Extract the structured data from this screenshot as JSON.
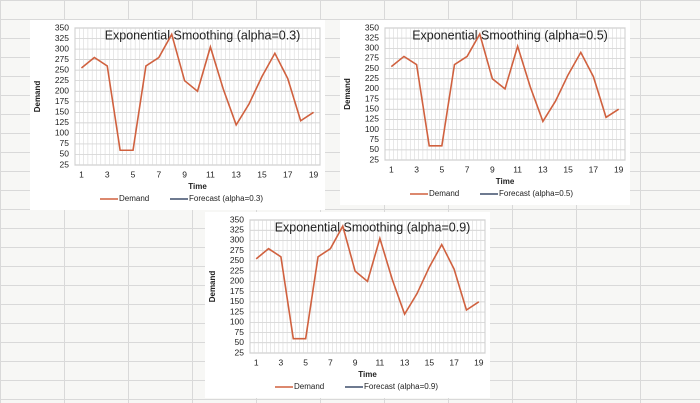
{
  "chart_data": [
    {
      "type": "line",
      "title": "Exponential Smoothing (alpha=0.3)",
      "x_label": "Time",
      "y_label": "Demand",
      "categories": [
        1,
        null,
        3,
        null,
        5,
        null,
        7,
        null,
        9,
        null,
        11,
        null,
        13,
        null,
        15,
        null,
        17,
        null,
        19
      ],
      "series": [
        {
          "name": "Demand",
          "color": "#d0613f",
          "values": [
            255,
            280,
            260,
            60,
            60,
            260,
            280,
            335,
            225,
            200,
            305,
            205,
            120,
            170,
            235,
            290,
            230,
            130,
            150
          ]
        },
        {
          "name": "Forecast (alpha=0.3)",
          "color": "#3f4f6b",
          "values": [
            null,
            null,
            null,
            null,
            null,
            null,
            null,
            null,
            null,
            null,
            null,
            null,
            null,
            null,
            null,
            null,
            null,
            null,
            null
          ]
        }
      ],
      "ylim": [
        25,
        350
      ],
      "yticks": [
        25,
        50,
        75,
        100,
        125,
        150,
        175,
        200,
        225,
        250,
        275,
        300,
        325,
        350
      ],
      "grid": true,
      "legend": "bottom"
    },
    {
      "type": "line",
      "title": "Exponential Smoothing (alpha=0.5)",
      "x_label": "Time",
      "y_label": "Demand",
      "categories": [
        1,
        null,
        3,
        null,
        5,
        null,
        7,
        null,
        9,
        null,
        11,
        null,
        13,
        null,
        15,
        null,
        17,
        null,
        19
      ],
      "series": [
        {
          "name": "Demand",
          "color": "#d0613f",
          "values": [
            255,
            280,
            260,
            60,
            60,
            260,
            280,
            335,
            225,
            200,
            305,
            205,
            120,
            170,
            235,
            290,
            230,
            130,
            150
          ]
        },
        {
          "name": "Forecast (alpha=0.5)",
          "color": "#3f4f6b",
          "values": [
            null,
            null,
            null,
            null,
            null,
            null,
            null,
            null,
            null,
            null,
            null,
            null,
            null,
            null,
            null,
            null,
            null,
            null,
            null
          ]
        }
      ],
      "ylim": [
        25,
        350
      ],
      "yticks": [
        25,
        50,
        75,
        100,
        125,
        150,
        175,
        200,
        225,
        250,
        275,
        300,
        325,
        350
      ],
      "grid": true,
      "legend": "bottom"
    },
    {
      "type": "line",
      "title": "Exponential Smoothing (alpha=0.9)",
      "x_label": "Time",
      "y_label": "Demand",
      "categories": [
        1,
        null,
        3,
        null,
        5,
        null,
        7,
        null,
        9,
        null,
        11,
        null,
        13,
        null,
        15,
        null,
        17,
        null,
        19
      ],
      "series": [
        {
          "name": "Demand",
          "color": "#d0613f",
          "values": [
            255,
            280,
            260,
            60,
            60,
            260,
            280,
            335,
            225,
            200,
            305,
            205,
            120,
            170,
            235,
            290,
            230,
            130,
            150
          ]
        },
        {
          "name": "Forecast (alpha=0.9)",
          "color": "#3f4f6b",
          "values": [
            null,
            null,
            null,
            null,
            null,
            null,
            null,
            null,
            null,
            null,
            null,
            null,
            null,
            null,
            null,
            null,
            null,
            null,
            null
          ]
        }
      ],
      "ylim": [
        25,
        350
      ],
      "yticks": [
        25,
        50,
        75,
        100,
        125,
        150,
        175,
        200,
        225,
        250,
        275,
        300,
        325,
        350
      ],
      "grid": true,
      "legend": "bottom"
    }
  ]
}
